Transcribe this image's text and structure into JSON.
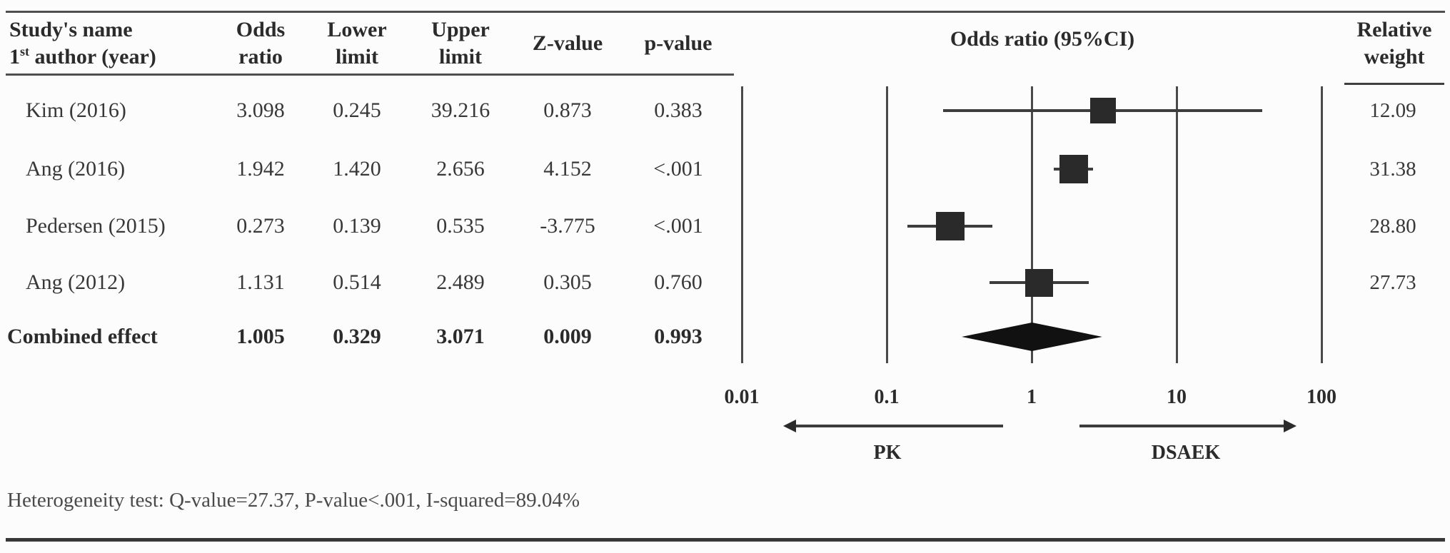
{
  "figure": {
    "header": {
      "study_col_line1": "Study's name",
      "study_col_line2_base": "1",
      "study_col_line2_sup": "st",
      "study_col_line2_rest": " author (year)",
      "columns": [
        {
          "id": "odds_ratio",
          "line1": "Odds",
          "line2": "ratio"
        },
        {
          "id": "lower",
          "line1": "Lower",
          "line2": "limit"
        },
        {
          "id": "upper",
          "line1": "Upper",
          "line2": "limit"
        },
        {
          "id": "z_value",
          "line1": "Z-value",
          "line2": ""
        },
        {
          "id": "p_value",
          "line1": "p-value",
          "line2": ""
        }
      ],
      "plot_title": "Odds ratio (95%CI)",
      "weight_col_line1": "Relative",
      "weight_col_line2": "weight"
    },
    "footer": {
      "heterogeneity": "Heterogeneity test: Q-value=27.37, P-value<.001, I-squared=89.04%"
    },
    "colors": {
      "ink": "#383838",
      "bold_ink": "#2b2b2b",
      "marker": "#2a2a2a",
      "line": "#4a4a4a",
      "background": "#fcfcfc"
    }
  },
  "chart_data": {
    "type": "forest",
    "x_scale": "log10",
    "xlim": [
      0.01,
      100
    ],
    "x_ticks": [
      0.01,
      0.1,
      1,
      10,
      100
    ],
    "x_tick_labels": [
      "0.01",
      "0.1",
      "1",
      "10",
      "100"
    ],
    "title": "Odds ratio (95%CI)",
    "studies": [
      {
        "name": "Kim (2016)",
        "odds_ratio": 3.098,
        "lower": 0.245,
        "upper": 39.216,
        "z_value": 0.873,
        "p_value": "0.383",
        "relative_weight": 12.09
      },
      {
        "name": "Ang (2016)",
        "odds_ratio": 1.942,
        "lower": 1.42,
        "upper": 2.656,
        "z_value": 4.152,
        "p_value": "<.001",
        "relative_weight": 31.38
      },
      {
        "name": "Pedersen (2015)",
        "odds_ratio": 0.273,
        "lower": 0.139,
        "upper": 0.535,
        "z_value": -3.775,
        "p_value": "<.001",
        "relative_weight": 28.8
      },
      {
        "name": "Ang (2012)",
        "odds_ratio": 1.131,
        "lower": 0.514,
        "upper": 2.489,
        "z_value": 0.305,
        "p_value": "0.760",
        "relative_weight": 27.73
      }
    ],
    "combined": {
      "name": "Combined effect",
      "odds_ratio": 1.005,
      "lower": 0.329,
      "upper": 3.071,
      "z_value": 0.009,
      "p_value": "0.993"
    },
    "direction_labels": {
      "left": "PK",
      "right": "DSAEK"
    },
    "heterogeneity": {
      "q_value": 27.37,
      "p_value": "<.001",
      "i_squared": "89.04%"
    }
  }
}
